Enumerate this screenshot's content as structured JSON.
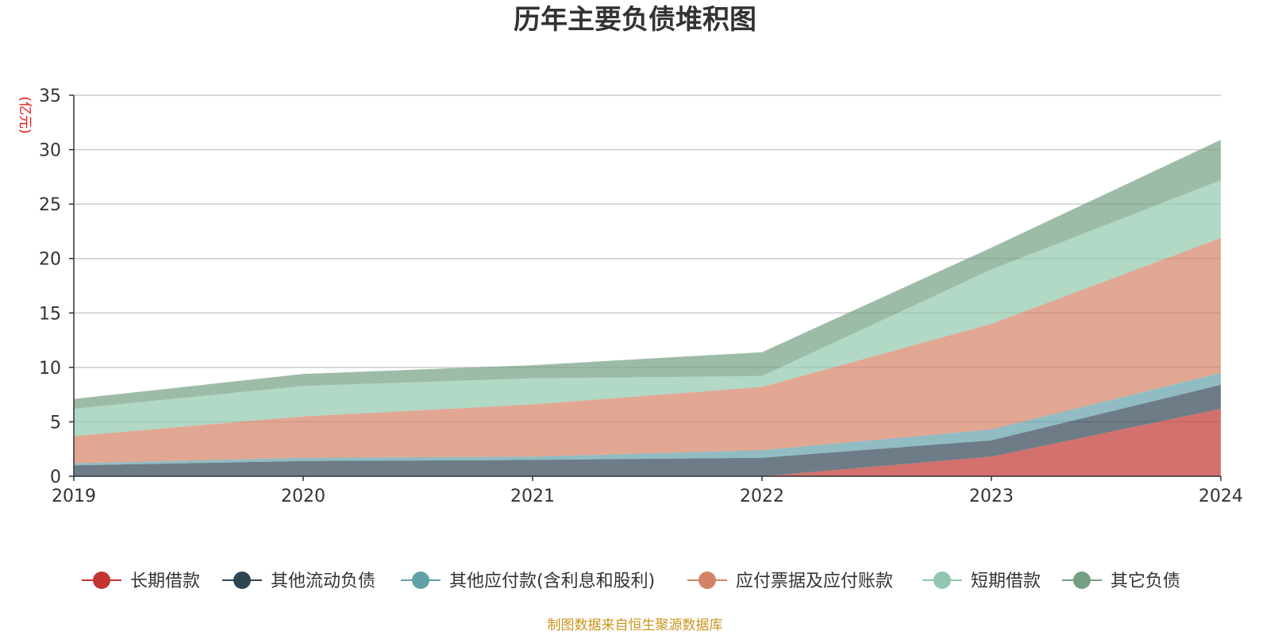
{
  "chart_data": {
    "type": "area",
    "stacked": true,
    "title": "历年主要负债堆积图",
    "unit_label": "(亿元)",
    "x": [
      "2019",
      "2020",
      "2021",
      "2022",
      "2023",
      "2024"
    ],
    "ylim": [
      0,
      35
    ],
    "yticks": [
      "0",
      "5",
      "10",
      "15",
      "20",
      "25",
      "30",
      "35"
    ],
    "grid": true,
    "legend_position": "bottom",
    "series": [
      {
        "name": "长期借款",
        "color": "#c23531",
        "values": [
          0,
          0,
          0,
          0,
          1.8,
          6.2
        ]
      },
      {
        "name": "其他流动负债",
        "color": "#2f4554",
        "values": [
          1.0,
          1.4,
          1.5,
          1.7,
          1.5,
          2.2
        ]
      },
      {
        "name": "其他应付款(含利息和股利)",
        "color": "#61a0a8",
        "values": [
          0.2,
          0.3,
          0.3,
          0.7,
          1.0,
          1.1
        ]
      },
      {
        "name": "应付票据及应付账款",
        "color": "#d48265",
        "values": [
          2.5,
          3.8,
          4.8,
          5.8,
          9.7,
          12.4
        ]
      },
      {
        "name": "短期借款",
        "color": "#91c7ae",
        "values": [
          2.5,
          2.8,
          2.4,
          1.0,
          5.0,
          5.3
        ]
      },
      {
        "name": "其它负债",
        "color": "#749f83",
        "values": [
          0.9,
          1.1,
          1.2,
          2.2,
          2.0,
          3.7
        ]
      }
    ],
    "source_note": "制图数据来自恒生聚源数据库"
  }
}
